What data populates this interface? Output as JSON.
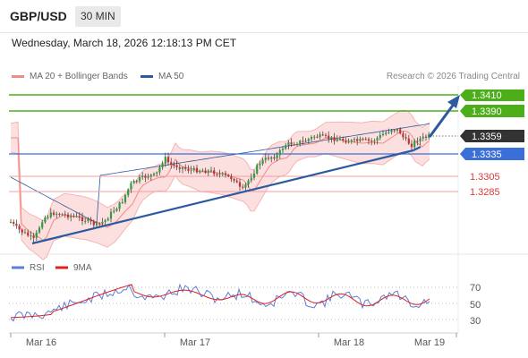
{
  "header": {
    "symbol": "GBP/USD",
    "timeframe": "30 MIN"
  },
  "datetime": "Wednesday, March 18, 2026 12:18:13 PM CET",
  "legend": {
    "bollinger": {
      "label": "MA 20 + Bollinger Bands",
      "color": "#f28b82"
    },
    "ma50": {
      "label": "MA 50",
      "color": "#2c5aa0"
    }
  },
  "credit": "Research © 2026 Trading Central",
  "price_levels": {
    "r2": {
      "label": "1.3410",
      "color": "#4caf1a"
    },
    "r1": {
      "label": "1.3390",
      "color": "#4caf1a"
    },
    "current": {
      "label": "1.3359",
      "color": "#333333"
    },
    "pivot": {
      "label": "1.3335",
      "color": "#3a6fd8"
    },
    "s1": {
      "label": "1.3305",
      "color": "#e05050"
    },
    "s2": {
      "label": "1.3285",
      "color": "#e05050"
    }
  },
  "rsi_panel": {
    "rsi_label": "RSI",
    "rsi_color": "#5b7fd6",
    "ma_label": "9MA",
    "ma_color": "#e02020",
    "levels": [
      "70",
      "50",
      "30"
    ]
  },
  "x_axis": [
    "Mar 16",
    "Mar 17",
    "Mar 18",
    "Mar 19"
  ]
}
